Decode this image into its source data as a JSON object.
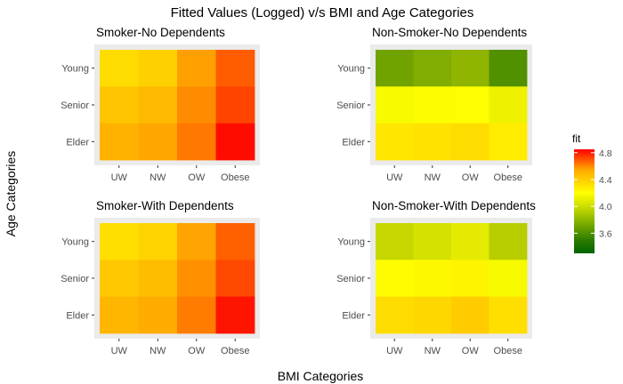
{
  "chart_data": {
    "type": "heatmap",
    "title": "Fitted Values (Logged) v/s BMI and Age Categories",
    "xlabel": "BMI Categories",
    "ylabel": "Age Categories",
    "x_categories": [
      "UW",
      "NW",
      "OW",
      "Obese"
    ],
    "y_categories": [
      "Young",
      "Senior",
      "Elder"
    ],
    "legend": {
      "title": "fit",
      "ticks": [
        4.8,
        4.4,
        4.0,
        3.6
      ],
      "range": [
        3.3,
        4.85
      ],
      "colors": [
        "#006400",
        "#ffff00",
        "#ff0000"
      ]
    },
    "facets": [
      {
        "title": "Smoker-No Dependents",
        "values": [
          [
            4.28,
            4.32,
            4.45,
            4.62
          ],
          [
            4.35,
            4.38,
            4.5,
            4.68
          ],
          [
            4.4,
            4.43,
            4.55,
            4.82
          ]
        ]
      },
      {
        "title": "Non-Smoker-No Dependents",
        "values": [
          [
            3.68,
            3.72,
            3.76,
            3.6
          ],
          [
            4.1,
            4.13,
            4.14,
            4.02
          ],
          [
            4.24,
            4.26,
            4.28,
            4.22
          ]
        ]
      },
      {
        "title": "Smoker-With Dependents",
        "values": [
          [
            4.27,
            4.31,
            4.44,
            4.61
          ],
          [
            4.34,
            4.37,
            4.49,
            4.67
          ],
          [
            4.39,
            4.42,
            4.54,
            4.8
          ]
        ]
      },
      {
        "title": "Non-Smoker-With Dependents",
        "values": [
          [
            3.9,
            3.94,
            3.98,
            3.86
          ],
          [
            4.16,
            4.18,
            4.19,
            4.1
          ],
          [
            4.28,
            4.3,
            4.33,
            4.27
          ]
        ]
      }
    ]
  }
}
